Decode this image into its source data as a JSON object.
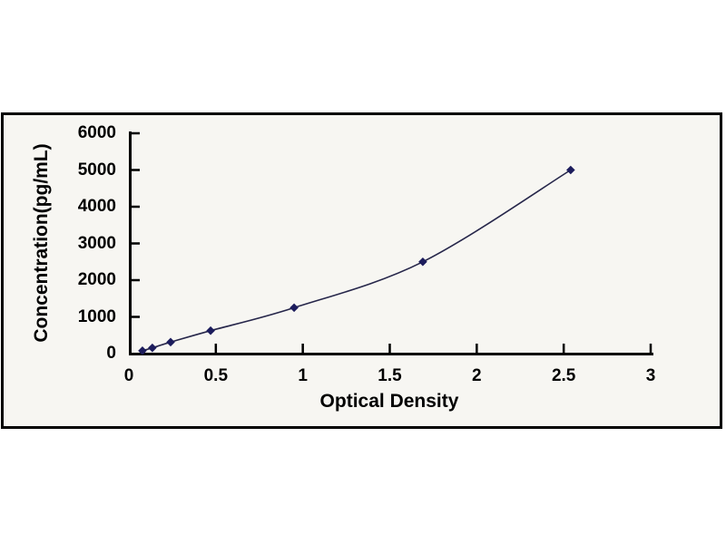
{
  "figure": {
    "background": "#ffffff",
    "frame_color": "#000000",
    "plot_background": "#f7f6f2"
  },
  "chart_data": {
    "type": "line",
    "title": "",
    "xlabel": "Optical Density",
    "ylabel": "Concentration(pg/mL)",
    "x": [
      0.078,
      0.135,
      0.24,
      0.47,
      0.95,
      1.69,
      2.54
    ],
    "y": [
      78.125,
      156.25,
      312.5,
      625,
      1250,
      2500,
      5000
    ],
    "xlim": [
      0,
      3
    ],
    "ylim": [
      0,
      6000
    ],
    "x_ticks": [
      0.5,
      1,
      1.5,
      2,
      2.5,
      3
    ],
    "x_tick_labels": [
      "0.5",
      "1",
      "1.5",
      "2",
      "2.5",
      "3"
    ],
    "x_origin_label": "0",
    "y_ticks": [
      1000,
      2000,
      3000,
      4000,
      5000,
      6000
    ],
    "y_tick_labels": [
      "1000",
      "2000",
      "3000",
      "4000",
      "5000",
      "6000"
    ],
    "y_origin_label": "0",
    "grid": false,
    "legend": null,
    "marker": "diamond",
    "line_color": "#26264a",
    "marker_color": "#1c1c5c",
    "axis_color": "#000000",
    "text_color": "#000000"
  }
}
